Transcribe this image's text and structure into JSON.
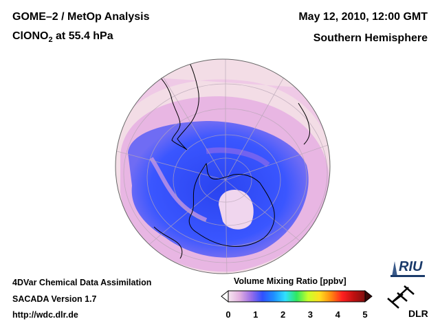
{
  "header": {
    "title_line1": "GOME–2 / MetOp Analysis",
    "title_line2_prefix": "ClONO",
    "title_line2_sub": "2",
    "title_line2_suffix": " at 55.4 hPa",
    "date": "May 12, 2010, 12:00 GMT",
    "region": "Southern Hemisphere"
  },
  "footer": {
    "line1": "4DVar Chemical Data Assimilation",
    "line2": "SACADA Version 1.7",
    "line3": "http://wdc.dlr.de"
  },
  "colorbar": {
    "title": "Volume Mixing Ratio [ppbv]",
    "ticks": [
      "0",
      "1",
      "2",
      "3",
      "4",
      "5"
    ],
    "colors": [
      "#f6e6f0",
      "#e2b0e0",
      "#9a6ee8",
      "#3050ff",
      "#1e90ff",
      "#30e0ff",
      "#2ee860",
      "#c8ff2a",
      "#ffe020",
      "#ff8a10",
      "#ff2020",
      "#c01010",
      "#801010"
    ]
  },
  "logos": {
    "riu": "RIU",
    "dlr": "DLR"
  },
  "map": {
    "background_color": "#f3dde6",
    "low_color": "#3a56ff",
    "mid_color": "#e0a8e6",
    "coast_color": "#000000"
  }
}
